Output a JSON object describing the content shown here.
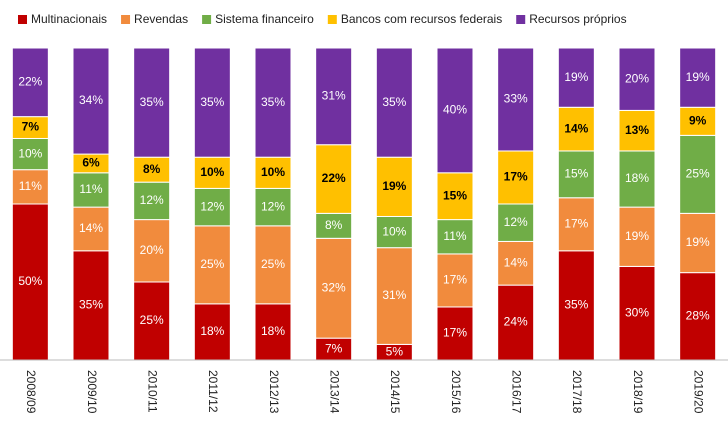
{
  "chart_data": {
    "type": "bar",
    "stacked": true,
    "categories": [
      "2008/09",
      "2009/10",
      "2010/11",
      "2011/12",
      "2012/13",
      "2013/14",
      "2014/15",
      "2015/16",
      "2016/17",
      "2017/18",
      "2018/19",
      "2019/20"
    ],
    "ylim": [
      0,
      100
    ],
    "series": [
      {
        "name": "Multinacionais",
        "color": "#c00000",
        "values": [
          50,
          35,
          25,
          18,
          18,
          7,
          5,
          17,
          24,
          35,
          30,
          28
        ],
        "value_labels": [
          "50%",
          "35%",
          "25%",
          "18%",
          "18%",
          "7%",
          "5%",
          "17%",
          "24%",
          "35%",
          "30%",
          "28%"
        ]
      },
      {
        "name": "Revendas",
        "color": "#f18b3d",
        "values": [
          11,
          14,
          20,
          25,
          25,
          32,
          31,
          17,
          14,
          17,
          19,
          19
        ],
        "value_labels": [
          "11%",
          "14%",
          "20%",
          "25%",
          "25%",
          "32%",
          "31%",
          "17%",
          "14%",
          "17%",
          "19%",
          "19%"
        ]
      },
      {
        "name": "Sistema financeiro",
        "color": "#70ad47",
        "values": [
          10,
          11,
          12,
          12,
          12,
          8,
          10,
          11,
          12,
          15,
          18,
          25
        ],
        "value_labels": [
          "10%",
          "11%",
          "12%",
          "12%",
          "12%",
          "8%",
          "10%",
          "11%",
          "12%",
          "15%",
          "18%",
          "25%"
        ]
      },
      {
        "name": "Bancos com recursos federais",
        "color": "#ffc000",
        "values": [
          7,
          6,
          8,
          10,
          10,
          22,
          19,
          15,
          17,
          14,
          13,
          9
        ],
        "value_labels": [
          "7%",
          "6%",
          "8%",
          "10%",
          "10%",
          "22%",
          "19%",
          "15%",
          "17%",
          "14%",
          "13%",
          "9%"
        ]
      },
      {
        "name": "Recursos próprios",
        "color": "#7030a0",
        "values": [
          22,
          34,
          35,
          35,
          35,
          31,
          35,
          40,
          33,
          19,
          20,
          19
        ],
        "value_labels": [
          "22%",
          "34%",
          "35%",
          "35%",
          "35%",
          "31%",
          "35%",
          "40%",
          "33%",
          "19%",
          "20%",
          "19%"
        ]
      }
    ]
  }
}
